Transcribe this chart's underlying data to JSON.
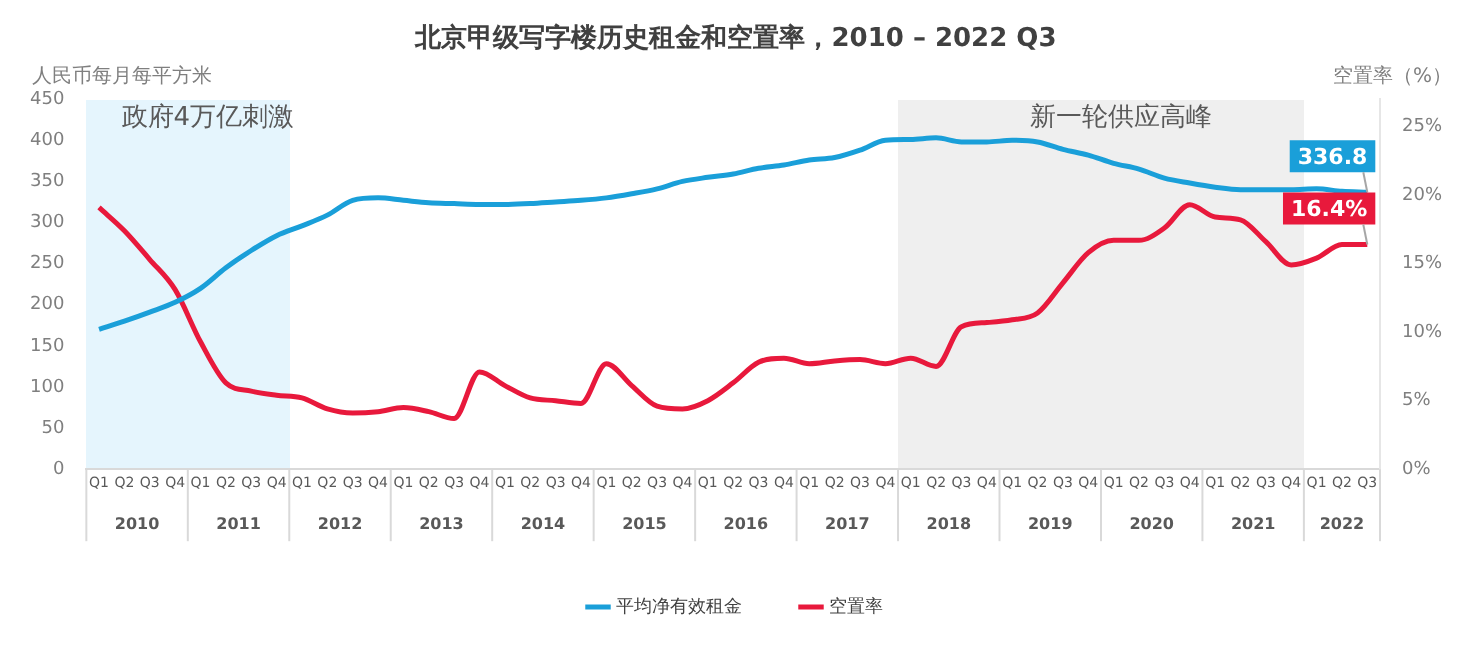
{
  "chart_data": {
    "type": "line",
    "title": "北京甲级写字楼历史租金和空置率，2010 – 2022 Q3",
    "ylabel": "人民币每月每平方米",
    "y2label": "空置率（%）",
    "categories": [
      "Q1",
      "Q2",
      "Q3",
      "Q4",
      "Q1",
      "Q2",
      "Q3",
      "Q4",
      "Q1",
      "Q2",
      "Q3",
      "Q4",
      "Q1",
      "Q2",
      "Q3",
      "Q4",
      "Q1",
      "Q2",
      "Q3",
      "Q4",
      "Q1",
      "Q2",
      "Q3",
      "Q4",
      "Q1",
      "Q2",
      "Q3",
      "Q4",
      "Q1",
      "Q2",
      "Q3",
      "Q4",
      "Q1",
      "Q2",
      "Q3",
      "Q4",
      "Q1",
      "Q2",
      "Q3",
      "Q4",
      "Q1",
      "Q2",
      "Q3",
      "Q4",
      "Q1",
      "Q2",
      "Q3",
      "Q4",
      "Q1",
      "Q2",
      "Q3"
    ],
    "ylim": [
      0,
      450
    ],
    "yticks": [
      0,
      50,
      100,
      150,
      200,
      250,
      300,
      350,
      400,
      450
    ],
    "y2lim": [
      0,
      27
    ],
    "y2ticks": [
      {
        "value": 0,
        "label": "0%"
      },
      {
        "value": 5,
        "label": "5%"
      },
      {
        "value": 10,
        "label": "10%"
      },
      {
        "value": 15,
        "label": "15%"
      },
      {
        "value": 20,
        "label": "20%"
      },
      {
        "value": 25,
        "label": "25%"
      }
    ],
    "series": [
      {
        "name": "平均净有效租金",
        "color": "#1a9fd9",
        "values": [
          170,
          180,
          191,
          203,
          220,
          245,
          266,
          284,
          296,
          309,
          327,
          330,
          327,
          324,
          323,
          322,
          322,
          323,
          325,
          327,
          330,
          335,
          341,
          350,
          355,
          359,
          366,
          370,
          376,
          379,
          388,
          400,
          401,
          403,
          398,
          398,
          400,
          398,
          389,
          382,
          372,
          365,
          354,
          348,
          343,
          340,
          340,
          340,
          341,
          338,
          336.8
        ],
        "value_labels": [
          null,
          null,
          null,
          null,
          null,
          null,
          null,
          null,
          null,
          null,
          null,
          null,
          null,
          null,
          null,
          null,
          null,
          null,
          null,
          null,
          null,
          null,
          null,
          null,
          null,
          null,
          null,
          null,
          null,
          null,
          null,
          null,
          null,
          null,
          null,
          null,
          null,
          null,
          null,
          null,
          null,
          null,
          null,
          null,
          null,
          null,
          null,
          null,
          null,
          null,
          "336.8"
        ]
      },
      {
        "name": "空置率",
        "color": "#e8193c",
        "axis": "y2",
        "values": [
          19.1,
          17.4,
          15.3,
          13.1,
          9.3,
          6.3,
          5.7,
          5.4,
          5.2,
          4.4,
          4.1,
          4.2,
          4.5,
          4.2,
          3.7,
          7.1,
          6.1,
          5.2,
          5.0,
          4.8,
          7.7,
          6.1,
          4.6,
          4.4,
          5.0,
          6.3,
          7.8,
          8.1,
          7.7,
          7.9,
          8.0,
          7.7,
          8.1,
          7.5,
          10.4,
          10.7,
          10.9,
          11.4,
          13.6,
          15.8,
          16.7,
          16.7,
          17.6,
          19.3,
          18.4,
          18.2,
          16.6,
          14.9,
          15.4,
          16.4,
          16.4
        ],
        "value_labels": [
          null,
          null,
          null,
          null,
          null,
          null,
          null,
          null,
          null,
          null,
          null,
          null,
          null,
          null,
          null,
          null,
          null,
          null,
          null,
          null,
          null,
          null,
          null,
          null,
          null,
          null,
          null,
          null,
          null,
          null,
          null,
          null,
          null,
          null,
          null,
          null,
          null,
          null,
          null,
          null,
          null,
          null,
          null,
          null,
          null,
          null,
          null,
          null,
          null,
          null,
          "16.4%"
        ]
      }
    ],
    "annotations": [
      "2010",
      "2011",
      "2012",
      "2013",
      "2014",
      "2015",
      "2016",
      "2017",
      "2018",
      "2019",
      "2020",
      "2021",
      "2022",
      {
        "text": "政府4万亿刺激"
      },
      {
        "text": "新一轮供应高峰"
      }
    ],
    "marker": "none",
    "line_style": "solid",
    "grid": false,
    "legend": "bottom"
  }
}
